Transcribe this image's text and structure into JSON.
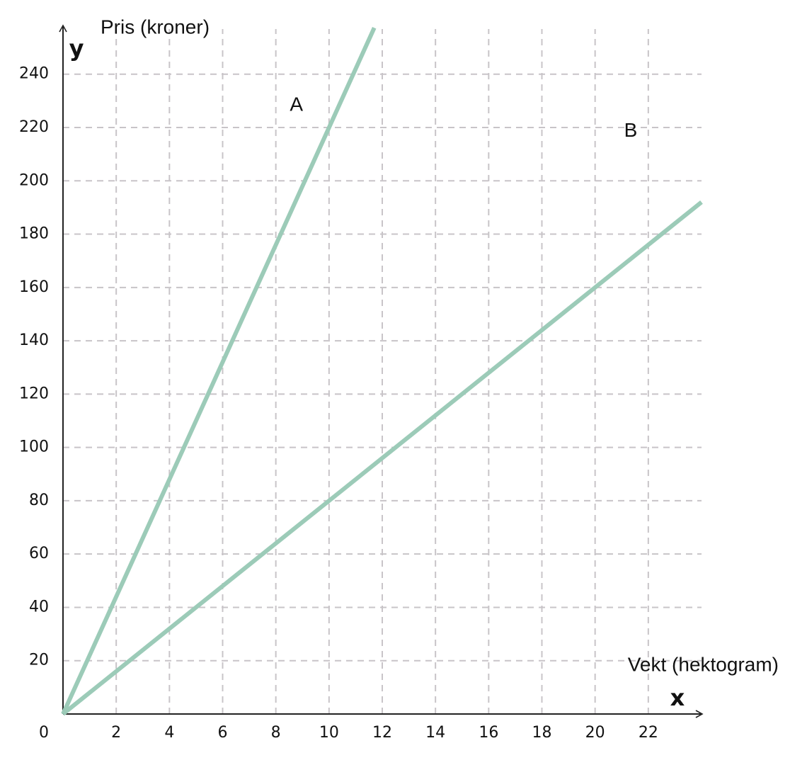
{
  "chart_data": {
    "type": "line",
    "x_axis_label": "x",
    "y_axis_label": "y",
    "x_title": "Vekt (hektogram)",
    "y_title": "Pris (kroner)",
    "xlim": [
      0,
      24
    ],
    "ylim": [
      0,
      258
    ],
    "xticks": [
      0,
      2,
      4,
      6,
      8,
      10,
      12,
      14,
      16,
      18,
      20,
      22
    ],
    "yticks": [
      20,
      40,
      60,
      80,
      100,
      120,
      140,
      160,
      180,
      200,
      220,
      240
    ],
    "grid": true,
    "series": [
      {
        "name": "A",
        "color": "#9ccbb8",
        "x": [
          0,
          11.7
        ],
        "values": [
          0,
          257.4
        ]
      },
      {
        "name": "B",
        "color": "#9ccbb8",
        "x": [
          0,
          24
        ],
        "values": [
          0,
          192
        ]
      }
    ]
  }
}
